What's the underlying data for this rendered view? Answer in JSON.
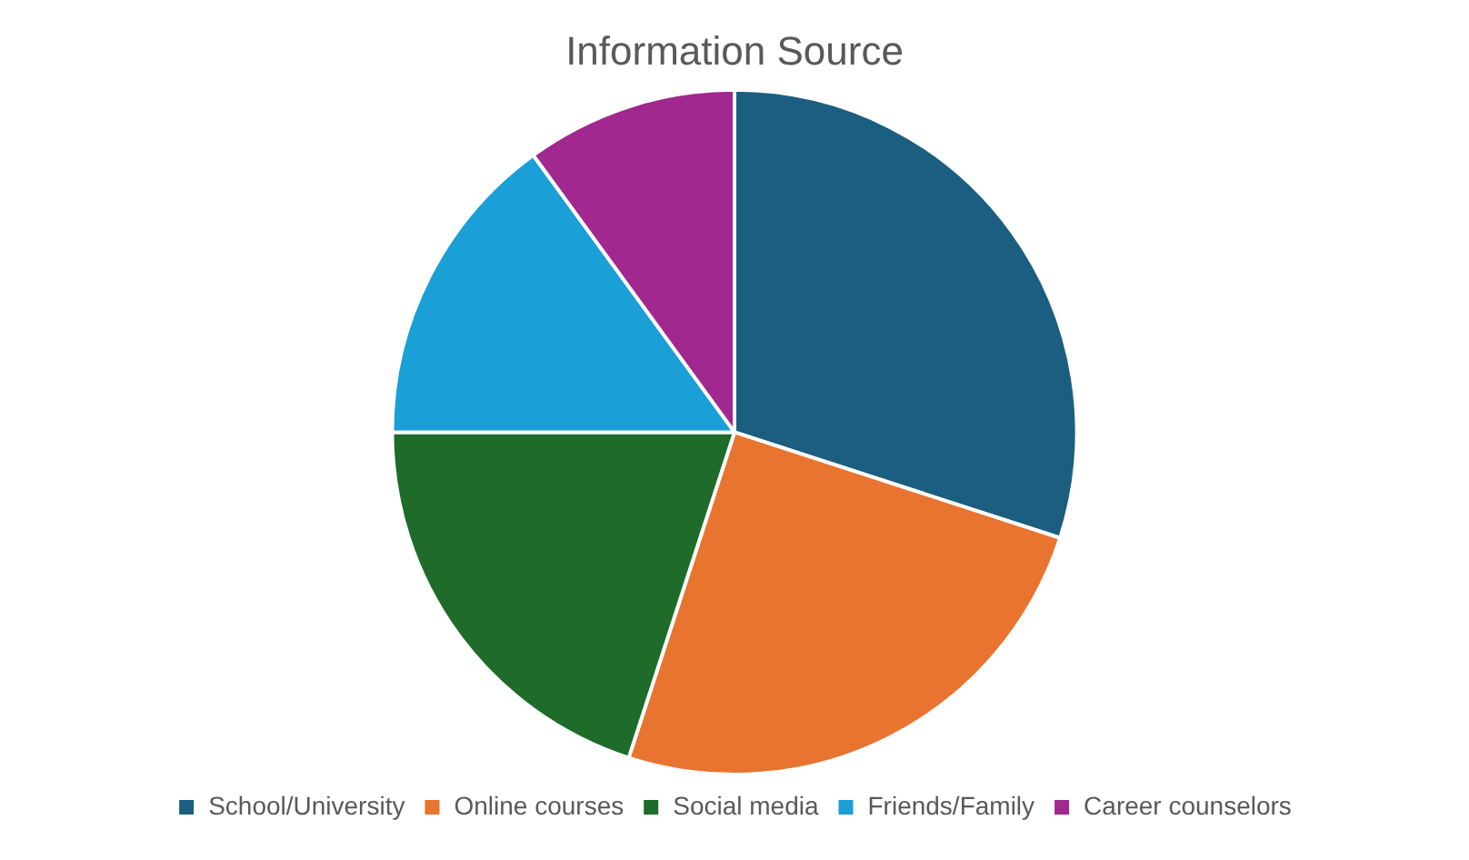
{
  "chart_data": {
    "type": "pie",
    "title": "Information Source",
    "categories": [
      "School/University",
      "Online courses",
      "Social media",
      "Friends/Family",
      "Career counselors"
    ],
    "values": [
      30,
      25,
      20,
      15,
      10
    ],
    "colors": [
      "#1b5e80",
      "#e8742f",
      "#1e6b2a",
      "#1a9fd6",
      "#a0288f"
    ],
    "legend": "bottom"
  }
}
